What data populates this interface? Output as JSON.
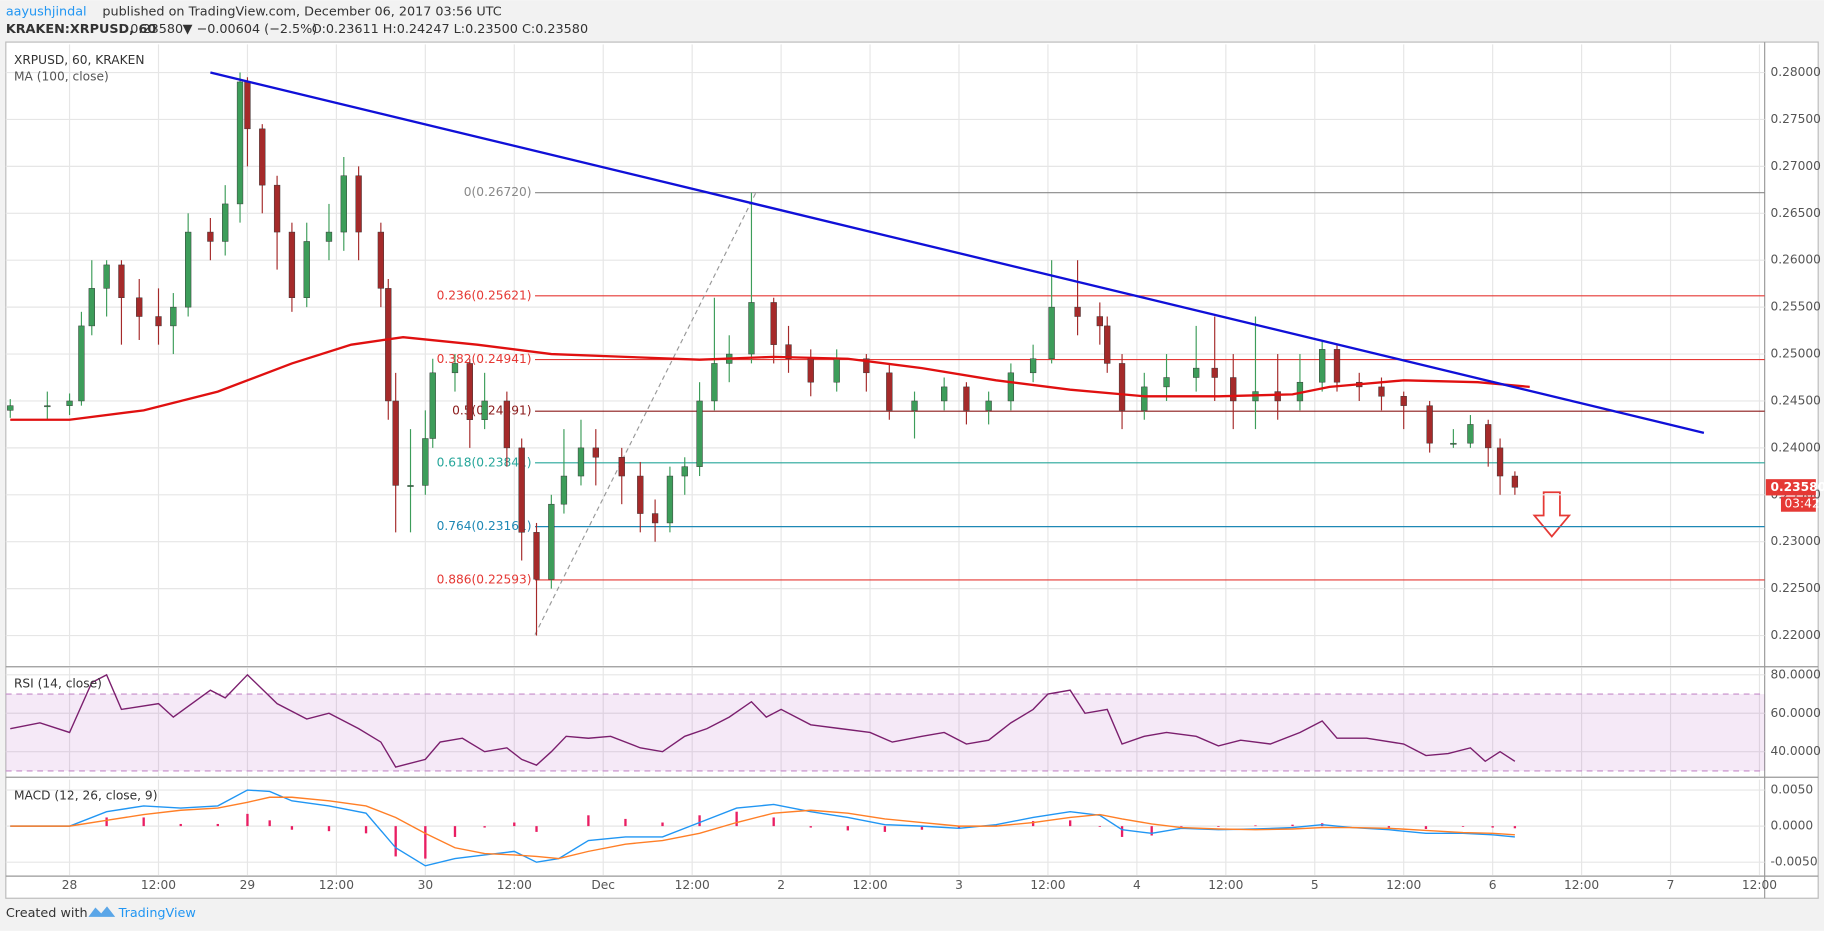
{
  "header": {
    "user": "aayushjindal",
    "published": "published on TradingView.com, December 06, 2017 03:56 UTC",
    "symbol": "KRAKEN:XRPUSD, 60",
    "last": "0.23580",
    "change": "▼ −0.00604 (−2.5%)",
    "ohlc": "O:0.23611 H:0.24247 L:0.23500 C:0.23580"
  },
  "footer": {
    "created": "Created with",
    "brand": "TradingView"
  },
  "chart_data": [
    {
      "type": "candlestick",
      "title": "XRPUSD, 60, KRAKEN",
      "up_color": "#3d9d5a",
      "down_color": "#a52a2a",
      "grid": true,
      "xlim": [
        -8.6,
        228.7
      ],
      "xticks": [
        {
          "value": 0,
          "label": "28"
        },
        {
          "value": 12,
          "label": "12:00"
        },
        {
          "value": 24,
          "label": "29"
        },
        {
          "value": 36,
          "label": "12:00"
        },
        {
          "value": 48,
          "label": "30"
        },
        {
          "value": 60,
          "label": "12:00"
        },
        {
          "value": 72,
          "label": "Dec"
        },
        {
          "value": 84,
          "label": "12:00"
        },
        {
          "value": 96,
          "label": "2"
        },
        {
          "value": 108,
          "label": "12:00"
        },
        {
          "value": 120,
          "label": "3"
        },
        {
          "value": 132,
          "label": "12:00"
        },
        {
          "value": 144,
          "label": "4"
        },
        {
          "value": 156,
          "label": "12:00"
        },
        {
          "value": 168,
          "label": "5"
        },
        {
          "value": 180,
          "label": "12:00"
        },
        {
          "value": 192,
          "label": "6"
        },
        {
          "value": 204,
          "label": "12:00"
        },
        {
          "value": 216,
          "label": "7"
        },
        {
          "value": 228,
          "label": "12:00"
        }
      ],
      "ylim": [
        0.2168,
        0.283
      ],
      "yticks": [
        {
          "value": 0.22,
          "label": "0.22000"
        },
        {
          "value": 0.225,
          "label": "0.22500"
        },
        {
          "value": 0.23,
          "label": "0.23000"
        },
        {
          "value": 0.235,
          "label": "0.23500"
        },
        {
          "value": 0.24,
          "label": "0.24000"
        },
        {
          "value": 0.245,
          "label": "0.24500"
        },
        {
          "value": 0.25,
          "label": "0.25000"
        },
        {
          "value": 0.255,
          "label": "0.25500"
        },
        {
          "value": 0.26,
          "label": "0.26000"
        },
        {
          "value": 0.265,
          "label": "0.26500"
        },
        {
          "value": 0.27,
          "label": "0.27000"
        },
        {
          "value": 0.275,
          "label": "0.27500"
        },
        {
          "value": 0.28,
          "label": "0.28000"
        }
      ],
      "x": [
        -8,
        -3,
        0,
        1.6,
        3,
        5,
        7,
        9.4,
        12,
        14,
        16,
        19,
        21,
        23,
        24,
        26,
        28,
        30,
        32,
        35,
        37,
        39,
        42,
        43,
        44,
        46,
        48,
        49,
        52,
        54,
        56,
        59,
        61,
        63,
        65,
        66.7,
        69,
        71,
        74.5,
        77,
        79,
        81,
        83,
        85,
        87,
        89,
        92,
        95,
        97,
        100,
        103.5,
        107.5,
        110.6,
        114,
        118,
        121,
        124,
        127,
        130,
        132.5,
        136,
        139,
        140,
        142,
        145,
        148,
        152,
        154.5,
        157,
        160,
        163,
        166,
        169,
        171,
        174,
        177,
        180,
        183.5,
        186.7,
        189,
        191.4,
        193,
        195
      ],
      "open": [
        0.244,
        0.2445,
        0.2445,
        0.245,
        0.253,
        0.257,
        0.2595,
        0.256,
        0.254,
        0.253,
        0.255,
        0.263,
        0.262,
        0.266,
        0.279,
        0.274,
        0.268,
        0.263,
        0.256,
        0.262,
        0.263,
        0.269,
        0.263,
        0.257,
        0.245,
        0.236,
        0.236,
        0.241,
        0.248,
        0.249,
        0.243,
        0.245,
        0.24,
        0.231,
        0.226,
        0.234,
        0.237,
        0.24,
        0.239,
        0.237,
        0.233,
        0.232,
        0.237,
        0.238,
        0.245,
        0.249,
        0.25,
        0.2555,
        0.251,
        0.2495,
        0.247,
        0.2495,
        0.248,
        0.244,
        0.245,
        0.2465,
        0.244,
        0.245,
        0.248,
        0.2495,
        0.255,
        0.254,
        0.253,
        0.249,
        0.244,
        0.2465,
        0.2475,
        0.2485,
        0.2475,
        0.245,
        0.246,
        0.245,
        0.247,
        0.2505,
        0.247,
        0.2465,
        0.2455,
        0.2445,
        0.2405,
        0.2405,
        0.2425,
        0.24,
        0.237
      ],
      "high": [
        0.2452,
        0.246,
        0.2458,
        0.2545,
        0.26,
        0.26,
        0.26,
        0.258,
        0.257,
        0.2565,
        0.265,
        0.2645,
        0.268,
        0.28,
        0.2795,
        0.2745,
        0.269,
        0.264,
        0.264,
        0.266,
        0.271,
        0.27,
        0.264,
        0.258,
        0.248,
        0.242,
        0.244,
        0.2495,
        0.25,
        0.2495,
        0.248,
        0.246,
        0.241,
        0.232,
        0.235,
        0.242,
        0.243,
        0.242,
        0.24,
        0.2385,
        0.2345,
        0.238,
        0.239,
        0.247,
        0.256,
        0.252,
        0.2672,
        0.256,
        0.253,
        0.2505,
        0.2505,
        0.25,
        0.249,
        0.246,
        0.2475,
        0.247,
        0.246,
        0.249,
        0.251,
        0.26,
        0.26,
        0.2555,
        0.254,
        0.25,
        0.248,
        0.25,
        0.253,
        0.254,
        0.25,
        0.254,
        0.25,
        0.25,
        0.2515,
        0.251,
        0.248,
        0.2475,
        0.246,
        0.245,
        0.242,
        0.2435,
        0.243,
        0.241,
        0.2375
      ],
      "low": [
        0.2432,
        0.243,
        0.2435,
        0.2445,
        0.252,
        0.254,
        0.251,
        0.2515,
        0.251,
        0.25,
        0.254,
        0.26,
        0.2605,
        0.264,
        0.27,
        0.265,
        0.259,
        0.2545,
        0.255,
        0.26,
        0.261,
        0.26,
        0.255,
        0.243,
        0.231,
        0.231,
        0.235,
        0.24,
        0.246,
        0.24,
        0.242,
        0.238,
        0.228,
        0.22,
        0.225,
        0.233,
        0.236,
        0.236,
        0.234,
        0.231,
        0.23,
        0.231,
        0.235,
        0.237,
        0.244,
        0.247,
        0.249,
        0.249,
        0.248,
        0.2455,
        0.246,
        0.246,
        0.243,
        0.241,
        0.244,
        0.2425,
        0.2425,
        0.244,
        0.247,
        0.249,
        0.252,
        0.251,
        0.248,
        0.242,
        0.243,
        0.245,
        0.246,
        0.245,
        0.242,
        0.242,
        0.243,
        0.244,
        0.246,
        0.246,
        0.245,
        0.244,
        0.242,
        0.2395,
        0.24,
        0.24,
        0.238,
        0.235,
        0.235
      ],
      "close": [
        0.2445,
        0.2445,
        0.245,
        0.253,
        0.257,
        0.2595,
        0.256,
        0.254,
        0.253,
        0.255,
        0.263,
        0.262,
        0.266,
        0.279,
        0.274,
        0.268,
        0.263,
        0.256,
        0.262,
        0.263,
        0.269,
        0.263,
        0.257,
        0.245,
        0.236,
        0.236,
        0.241,
        0.248,
        0.249,
        0.243,
        0.245,
        0.24,
        0.231,
        0.226,
        0.234,
        0.237,
        0.24,
        0.239,
        0.237,
        0.233,
        0.232,
        0.237,
        0.238,
        0.245,
        0.249,
        0.25,
        0.2555,
        0.251,
        0.2495,
        0.247,
        0.2495,
        0.248,
        0.244,
        0.245,
        0.2465,
        0.244,
        0.245,
        0.248,
        0.2495,
        0.255,
        0.254,
        0.253,
        0.249,
        0.244,
        0.2465,
        0.2475,
        0.2485,
        0.2475,
        0.245,
        0.246,
        0.245,
        0.247,
        0.2505,
        0.247,
        0.2465,
        0.2455,
        0.2445,
        0.2405,
        0.2405,
        0.2425,
        0.24,
        0.237,
        0.2358
      ],
      "ma": {
        "name": "MA (100, close)",
        "color": "#e01010",
        "x": [
          -8,
          0,
          10,
          20,
          30,
          38,
          45,
          55,
          65,
          75,
          85,
          95,
          105,
          115,
          125,
          135,
          145,
          155,
          165,
          170,
          180,
          190,
          197
        ],
        "values": [
          0.243,
          0.243,
          0.244,
          0.246,
          0.249,
          0.251,
          0.2518,
          0.251,
          0.25,
          0.2497,
          0.2494,
          0.2497,
          0.2495,
          0.2485,
          0.2472,
          0.2462,
          0.2455,
          0.2455,
          0.2457,
          0.2465,
          0.2472,
          0.247,
          0.2465
        ]
      },
      "trendline": {
        "color": "#1010d8",
        "x": [
          19,
          220.5
        ],
        "y": [
          0.28,
          0.2416
        ]
      },
      "fib": {
        "x": [
          62.8,
          92.6
        ],
        "y": [
          0.2201,
          0.2672
        ],
        "levels": [
          {
            "label": "0(0.26720)",
            "value": 0.2672,
            "color": "#888888"
          },
          {
            "label": "0.236(0.25621)",
            "value": 0.25621,
            "color": "#e53935"
          },
          {
            "label": "0.382(0.24941)",
            "value": 0.24941,
            "color": "#e53935"
          },
          {
            "label": "0.5(0.24391)",
            "value": 0.24391,
            "color": "#8b1a1a"
          },
          {
            "label": "0.618(0.23841)",
            "value": 0.23841,
            "color": "#26a69a"
          },
          {
            "label": "0.764(0.23161)",
            "value": 0.23161,
            "color": "#1e88b5"
          },
          {
            "label": "0.886(0.22593)",
            "value": 0.22593,
            "color": "#e53935"
          }
        ]
      },
      "last": {
        "value": 0.2358,
        "label": "0.23580",
        "countdown": "03:42",
        "color": "#e53935"
      }
    },
    {
      "type": "line",
      "title": "RSI (14, close)",
      "grid": true,
      "ylim": [
        27.3,
        83.6
      ],
      "yticks": [
        {
          "value": 40,
          "label": "40.0000"
        },
        {
          "value": 60,
          "label": "60.0000"
        },
        {
          "value": 80,
          "label": "80.0000"
        }
      ],
      "band": [
        30,
        70
      ],
      "band_color": "#9c27b0",
      "x": [
        -8,
        -4,
        0,
        3,
        5,
        7,
        12,
        14,
        19,
        21,
        24,
        28,
        32,
        35,
        39,
        42,
        44,
        48,
        50,
        53,
        56,
        59,
        61,
        63,
        65,
        67,
        70,
        73,
        77,
        80,
        83,
        86,
        89,
        92,
        94,
        96,
        100,
        104,
        108,
        111,
        115,
        118,
        121,
        124,
        127,
        130,
        132,
        135,
        137,
        140,
        142,
        145,
        148,
        152,
        155,
        158,
        162,
        166,
        169,
        171,
        175,
        180,
        183,
        186,
        189,
        191,
        193,
        195
      ],
      "series": [
        {
          "color": "#7b1f6e",
          "values": [
            52,
            55,
            50,
            76,
            80,
            62,
            65,
            58,
            72,
            68,
            80,
            65,
            57,
            60,
            52,
            45,
            32,
            36,
            45,
            47,
            40,
            42,
            36,
            33,
            40,
            48,
            47,
            48,
            42,
            40,
            48,
            52,
            58,
            66,
            58,
            62,
            54,
            52,
            50,
            45,
            48,
            50,
            44,
            46,
            55,
            62,
            70,
            72,
            60,
            62,
            44,
            48,
            50,
            48,
            43,
            46,
            44,
            50,
            56,
            47,
            47,
            44,
            38,
            39,
            42,
            35,
            40,
            35
          ]
        }
      ]
    },
    {
      "type": "line",
      "title": "MACD (12, 26, close, 9)",
      "grid": true,
      "ylim": [
        -0.00677,
        0.00645
      ],
      "yticks": [
        {
          "value": -0.005,
          "label": "-0.0050"
        },
        {
          "value": 0,
          "label": "0.0000"
        },
        {
          "value": 0.005,
          "label": "0.0050"
        }
      ],
      "x": [
        -8,
        0,
        5,
        10,
        15,
        20,
        24,
        27,
        30,
        35,
        40,
        44,
        48,
        52,
        56,
        60,
        63,
        66,
        70,
        75,
        80,
        85,
        90,
        95,
        100,
        105,
        110,
        115,
        120,
        125,
        130,
        135,
        139,
        142,
        146,
        150,
        155,
        160,
        165,
        169,
        173,
        178,
        183,
        188,
        192,
        195
      ],
      "series": [
        {
          "color": "#2196f3",
          "values": [
            0,
            0,
            0.002,
            0.0028,
            0.0025,
            0.0028,
            0.005,
            0.0048,
            0.0035,
            0.0028,
            0.0018,
            -0.003,
            -0.0055,
            -0.0045,
            -0.004,
            -0.0035,
            -0.005,
            -0.0045,
            -0.002,
            -0.0015,
            -0.0015,
            0.0005,
            0.0025,
            0.003,
            0.002,
            0.0012,
            0.0002,
            0,
            -0.0003,
            0.0002,
            0.0012,
            0.002,
            0.0015,
            -0.0005,
            -0.001,
            -0.0003,
            -0.0005,
            -0.0004,
            -0.0002,
            0.0002,
            -0.0002,
            -0.0005,
            -0.001,
            -0.001,
            -0.0012,
            -0.0015
          ]
        },
        {
          "color": "#ff7f27",
          "values": [
            0,
            0,
            0.0008,
            0.0016,
            0.0022,
            0.0025,
            0.0033,
            0.004,
            0.004,
            0.0035,
            0.0028,
            0.0012,
            -0.001,
            -0.003,
            -0.0038,
            -0.004,
            -0.0042,
            -0.0045,
            -0.0035,
            -0.0025,
            -0.002,
            -0.001,
            0.0005,
            0.0018,
            0.0022,
            0.0018,
            0.001,
            0.0005,
            0,
            0,
            0.0005,
            0.0012,
            0.0016,
            0.001,
            0.0003,
            -0.0002,
            -0.0004,
            -0.0005,
            -0.0004,
            -0.0002,
            -0.0002,
            -0.0003,
            -0.0006,
            -0.0009,
            -0.001,
            -0.0012
          ]
        }
      ],
      "histogram": {
        "color": "#e91e63",
        "values": [
          0,
          0,
          0.0012,
          0.0012,
          0.0003,
          0.0003,
          0.0017,
          0.0008,
          -0.0005,
          -0.0007,
          -0.001,
          -0.0042,
          -0.0045,
          -0.0015,
          -0.0002,
          0.0005,
          -0.0008,
          0,
          0.0015,
          0.001,
          0.0005,
          0.0015,
          0.002,
          0.0012,
          -0.0002,
          -0.0006,
          -0.0008,
          -0.0005,
          -0.0003,
          0.0002,
          0.0007,
          0.0008,
          -0.0001,
          -0.0015,
          -0.0013,
          -0.0001,
          -0.0001,
          0.0001,
          0.0002,
          0.0004,
          0,
          -0.0002,
          -0.0004,
          -0.0001,
          -0.0002,
          -0.0003
        ]
      }
    }
  ]
}
